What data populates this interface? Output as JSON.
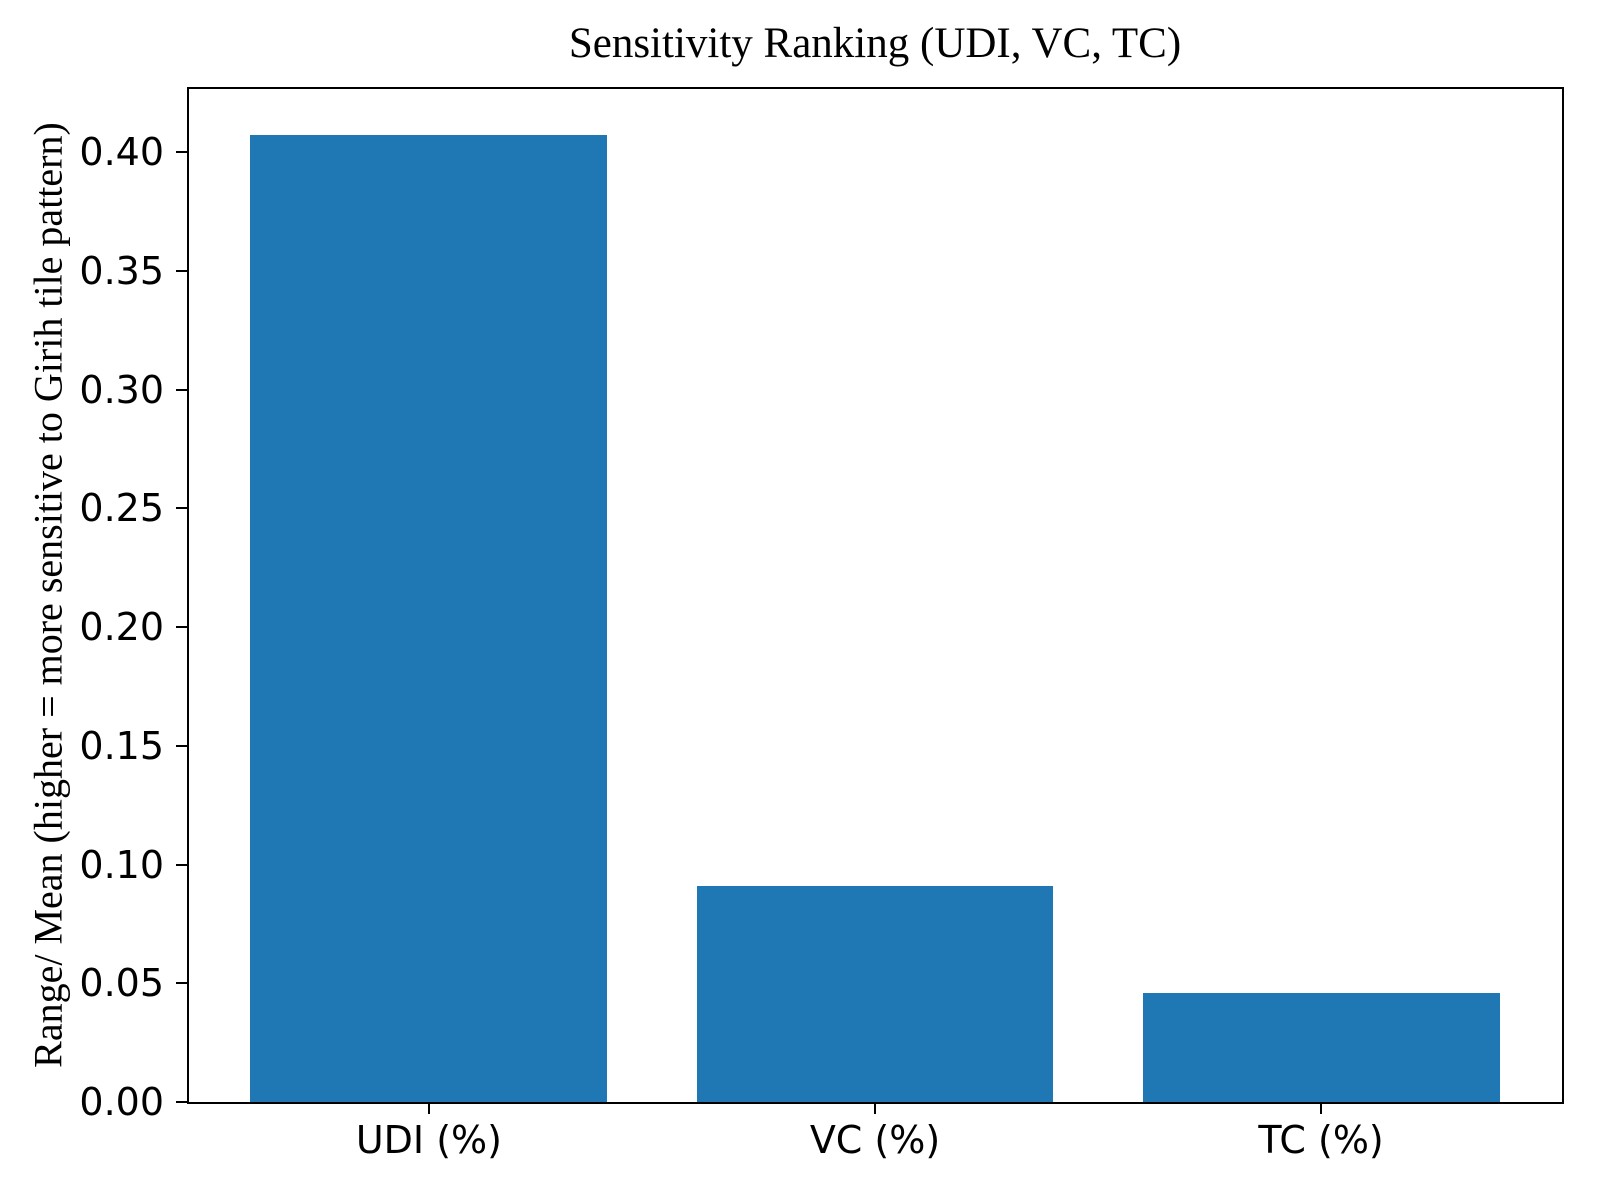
{
  "chart_data": {
    "type": "bar",
    "title": "Sensitivity Ranking (UDI, VC, TC)",
    "xlabel": "",
    "ylabel": "Range/ Mean (higher = more sensitive to Girih tile pattern)",
    "categories": [
      "UDI (%)",
      "VC (%)",
      "TC (%)"
    ],
    "values": [
      0.407,
      0.091,
      0.046
    ],
    "ylim": [
      0,
      0.427
    ],
    "yticks": [
      0.0,
      0.05,
      0.1,
      0.15,
      0.2,
      0.25,
      0.3,
      0.35,
      0.4
    ],
    "ytick_labels": [
      "0.00",
      "0.05",
      "0.10",
      "0.15",
      "0.20",
      "0.25",
      "0.30",
      "0.35",
      "0.40"
    ],
    "bar_color": "#1f77b4",
    "axis_color": "#000000",
    "background_color": "#ffffff",
    "grid": false,
    "legend": null
  }
}
